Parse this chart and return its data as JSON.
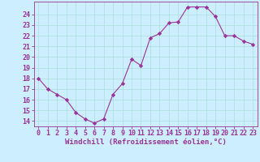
{
  "x": [
    0,
    1,
    2,
    3,
    4,
    5,
    6,
    7,
    8,
    9,
    10,
    11,
    12,
    13,
    14,
    15,
    16,
    17,
    18,
    19,
    20,
    21,
    22,
    23
  ],
  "y": [
    18.0,
    17.0,
    16.5,
    16.0,
    14.8,
    14.2,
    13.8,
    14.2,
    16.5,
    17.5,
    19.8,
    19.2,
    21.8,
    22.2,
    23.2,
    23.3,
    24.7,
    24.7,
    24.7,
    23.8,
    22.0,
    22.0,
    21.5,
    21.2
  ],
  "line_color": "#993399",
  "marker": "D",
  "marker_size": 2.2,
  "bg_color": "#cceeff",
  "grid_color": "#aadddd",
  "axis_color": "#993399",
  "xlabel": "Windchill (Refroidissement éolien,°C)",
  "xlabel_fontsize": 6.5,
  "tick_fontsize": 6.0,
  "ylim": [
    13.5,
    25.2
  ],
  "xlim": [
    -0.5,
    23.5
  ],
  "yticks": [
    14,
    15,
    16,
    17,
    18,
    19,
    20,
    21,
    22,
    23,
    24
  ],
  "xticks": [
    0,
    1,
    2,
    3,
    4,
    5,
    6,
    7,
    8,
    9,
    10,
    11,
    12,
    13,
    14,
    15,
    16,
    17,
    18,
    19,
    20,
    21,
    22,
    23
  ]
}
